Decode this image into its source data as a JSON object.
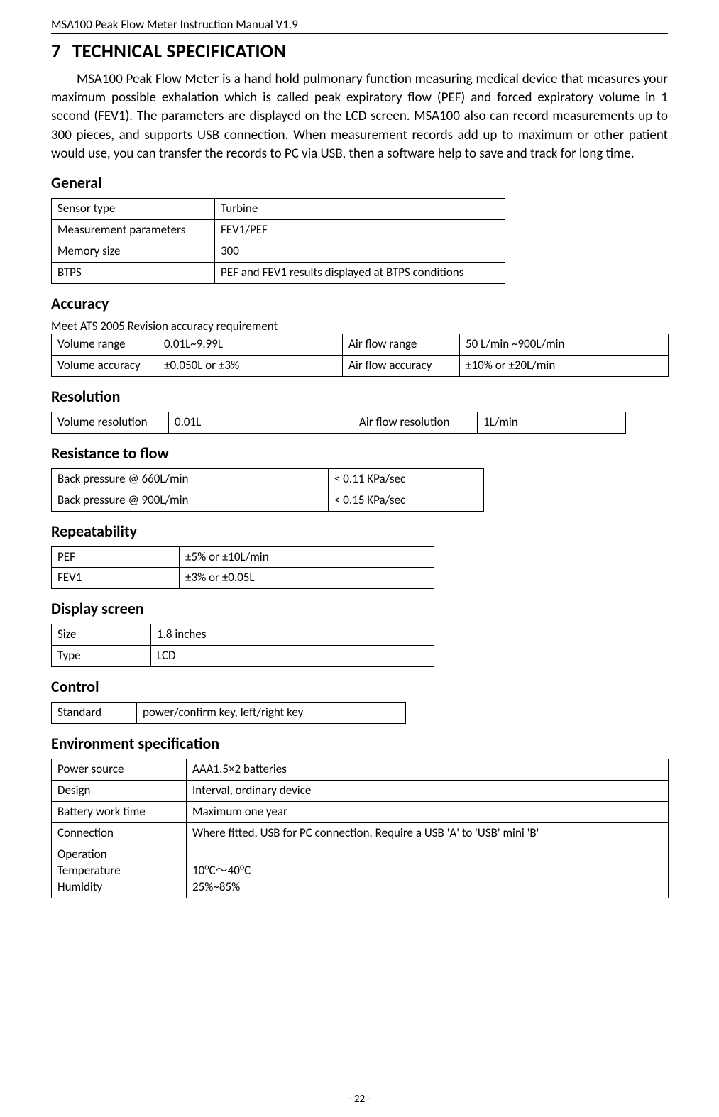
{
  "header": "MSA100 Peak Flow Meter Instruction Manual V1.9",
  "section_number": "7",
  "section_title": "TECHNICAL SPECIFICATION",
  "intro": "MSA100 Peak Flow Meter is a hand hold pulmonary function measuring medical device that measures your maximum possible exhalation which is called peak expiratory flow (PEF) and forced expiratory volume in 1 second (FEV1). The parameters are displayed on the LCD screen. MSA100 also can record measurements up to 300 pieces, and supports USB connection. When measurement records add up to maximum or other patient would use, you can transfer the records to PC via USB, then a software help to save and track for long time.",
  "general": {
    "heading": "General",
    "rows": [
      [
        "Sensor type",
        "Turbine"
      ],
      [
        "Measurement parameters",
        "FEV1/PEF"
      ],
      [
        "Memory size",
        "300"
      ],
      [
        "BTPS",
        "PEF and FEV1 results displayed at BTPS conditions"
      ]
    ]
  },
  "accuracy": {
    "heading": "Accuracy",
    "note": "Meet ATS 2005 Revision accuracy requirement",
    "rows": [
      [
        "Volume range",
        "0.01L~9.99L",
        "Air flow range",
        "50 L/min ~900L/min"
      ],
      [
        "Volume accuracy",
        "±0.050L or ±3%",
        "Air flow accuracy",
        "±10% or ±20L/min"
      ]
    ]
  },
  "resolution": {
    "heading": "Resolution",
    "rows": [
      [
        "Volume resolution",
        "0.01L",
        "Air flow resolution",
        "1L/min"
      ]
    ]
  },
  "resistance": {
    "heading": "Resistance to flow",
    "rows": [
      [
        "Back pressure @ 660L/min",
        "< 0.11 KPa/sec"
      ],
      [
        "Back pressure @ 900L/min",
        "< 0.15 KPa/sec"
      ]
    ]
  },
  "repeatability": {
    "heading": "Repeatability",
    "rows": [
      [
        "PEF",
        "±5% or ±10L/min"
      ],
      [
        "FEV1",
        "±3% or ±0.05L"
      ]
    ]
  },
  "display": {
    "heading": "Display screen",
    "rows": [
      [
        "Size",
        "1.8 inches"
      ],
      [
        "Type",
        "LCD"
      ]
    ]
  },
  "control": {
    "heading": "Control",
    "rows": [
      [
        "Standard",
        "power/confirm key, left/right key"
      ]
    ]
  },
  "environment": {
    "heading": "Environment specification",
    "rows": [
      [
        "Power source",
        "AAA1.5×2 batteries"
      ],
      [
        "Design",
        "Interval, ordinary device"
      ],
      [
        "Battery work time",
        "Maximum one year"
      ],
      [
        "Connection",
        "Where fitted, USB for PC connection. Require a USB 'A' to 'USB' mini 'B'"
      ]
    ],
    "op_label": "Operation\nTemperature\nHumidity",
    "op_value_html": "<br>10<sup>o</sup>C～40<sup>o</sup>C<br>25%~85%"
  },
  "footer": "- 22 -"
}
